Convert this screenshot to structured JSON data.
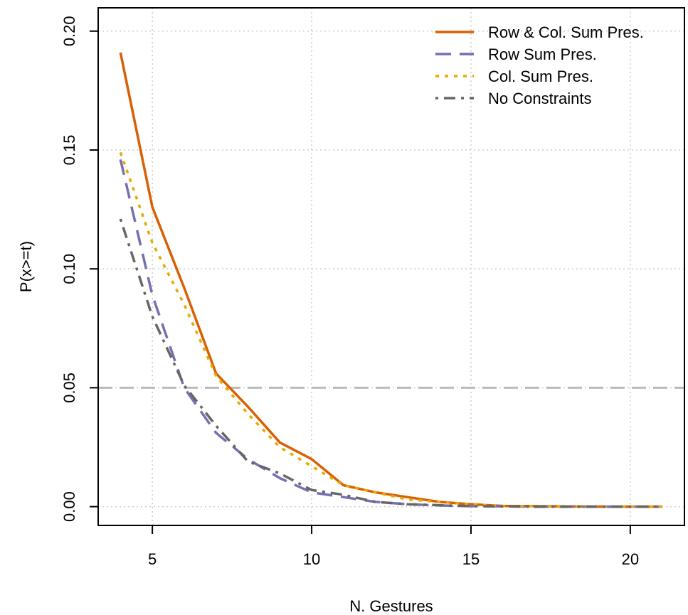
{
  "chart_data": {
    "type": "line",
    "xlabel": "N. Gestures",
    "ylabel": "P(x>=t)",
    "xlim": [
      3.3,
      21.7
    ],
    "ylim": [
      -0.0079,
      0.2098
    ],
    "x_ticks": [
      5,
      10,
      15,
      20
    ],
    "x_tick_labels": [
      "5",
      "10",
      "15",
      "20"
    ],
    "y_ticks": [
      0.0,
      0.05,
      0.1,
      0.15,
      0.2
    ],
    "y_tick_labels": [
      "0.00",
      "0.05",
      "0.10",
      "0.15",
      "0.20"
    ],
    "grid": true,
    "reference_line": {
      "y": 0.05,
      "color": "#bbbbbb"
    },
    "legend_position": "top-right",
    "x": [
      4,
      5,
      6,
      7,
      8,
      9,
      10,
      11,
      12,
      13,
      14,
      15,
      16,
      17,
      18,
      19,
      20,
      21
    ],
    "series": [
      {
        "name": "Row & Col. Sum Pres.",
        "color": "#d95f02",
        "style": "solid",
        "values": [
          0.191,
          0.126,
          0.092,
          0.056,
          0.042,
          0.027,
          0.02,
          0.009,
          0.006,
          0.004,
          0.002,
          0.001,
          0.0003,
          0.0002,
          0.0001,
          0.0,
          0.0,
          0.0
        ]
      },
      {
        "name": "Row Sum Pres.",
        "color": "#7570b3",
        "style": "dashed",
        "values": [
          0.146,
          0.089,
          0.05,
          0.031,
          0.02,
          0.012,
          0.006,
          0.004,
          0.002,
          0.001,
          0.0005,
          0.0002,
          0.0001,
          0.0,
          0.0,
          0.0,
          0.0,
          0.0
        ]
      },
      {
        "name": "Col. Sum Pres.",
        "color": "#e6ab02",
        "style": "dotted",
        "values": [
          0.149,
          0.111,
          0.085,
          0.055,
          0.039,
          0.025,
          0.017,
          0.009,
          0.006,
          0.003,
          0.002,
          0.001,
          0.0003,
          0.0002,
          0.0001,
          0.0,
          0.0,
          0.0
        ]
      },
      {
        "name": "No Constraints",
        "color": "#666666",
        "style": "dotdash",
        "values": [
          0.121,
          0.08,
          0.051,
          0.034,
          0.019,
          0.014,
          0.007,
          0.005,
          0.002,
          0.001,
          0.0006,
          0.0002,
          0.0001,
          0.0,
          0.0,
          0.0,
          0.0,
          0.0
        ]
      }
    ]
  }
}
